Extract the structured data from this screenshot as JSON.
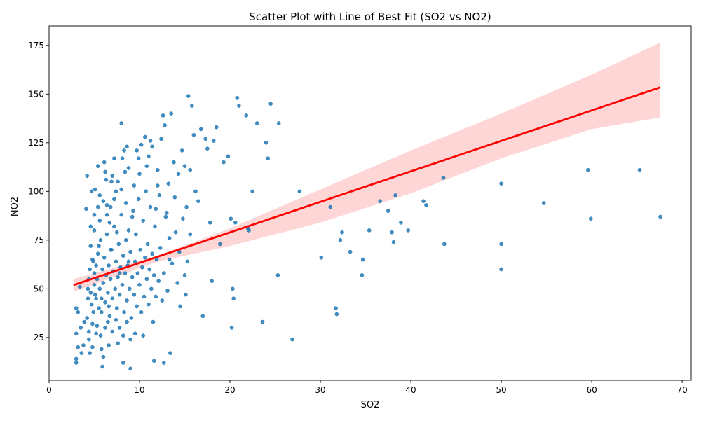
{
  "chart_data": {
    "type": "scatter",
    "title": "Scatter Plot with Line of Best Fit (SO2 vs NO2)",
    "xlabel": "SO2",
    "ylabel": "NO2",
    "xlim": [
      0,
      71
    ],
    "ylim": [
      3,
      185
    ],
    "xticks": [
      0,
      10,
      20,
      30,
      40,
      50,
      60,
      70
    ],
    "yticks": [
      25,
      50,
      75,
      100,
      125,
      150,
      175
    ],
    "grid": false,
    "legend": "none",
    "colors": {
      "points": "#1f77b4",
      "fit_line": "#ff0000",
      "band": "#ffc0c0"
    },
    "fit_line": {
      "x": [
        2.7,
        67.6
      ],
      "y": [
        51.9,
        153.5
      ]
    },
    "confidence_band": {
      "x": [
        2.7,
        12,
        20,
        30,
        40,
        50,
        60,
        67.6
      ],
      "upper": [
        55,
        67,
        81,
        101,
        121,
        140,
        160,
        176.5
      ],
      "lower": [
        48.5,
        64,
        72,
        84,
        99,
        117,
        132,
        138
      ]
    },
    "points": [
      [
        3,
        40
      ],
      [
        3,
        14
      ],
      [
        3,
        12
      ],
      [
        3,
        27
      ],
      [
        3.2,
        20
      ],
      [
        3.2,
        38
      ],
      [
        3.4,
        51
      ],
      [
        3.5,
        30
      ],
      [
        3.6,
        17
      ],
      [
        3.8,
        21
      ],
      [
        3.9,
        33
      ],
      [
        4.1,
        91
      ],
      [
        4.2,
        108
      ],
      [
        4.3,
        45
      ],
      [
        4.4,
        24
      ],
      [
        4.5,
        17
      ],
      [
        4.6,
        82
      ],
      [
        4.7,
        100
      ],
      [
        4.8,
        20
      ],
      [
        4.9,
        64
      ],
      [
        5,
        88
      ],
      [
        5.1,
        101
      ],
      [
        5.2,
        45
      ],
      [
        5.3,
        31
      ],
      [
        5.4,
        113
      ],
      [
        5.5,
        72
      ],
      [
        5.6,
        98
      ],
      [
        5.7,
        26
      ],
      [
        5.8,
        19
      ],
      [
        5.9,
        10
      ],
      [
        6,
        15
      ],
      [
        6.1,
        115
      ],
      [
        6.2,
        110
      ],
      [
        6.3,
        106
      ],
      [
        6.4,
        93
      ],
      [
        6.5,
        33
      ],
      [
        6.6,
        21
      ],
      [
        6.7,
        84
      ],
      [
        6.8,
        70
      ],
      [
        6.9,
        105
      ],
      [
        7,
        108
      ],
      [
        7.2,
        117
      ],
      [
        7.4,
        100
      ],
      [
        7.5,
        79
      ],
      [
        7.6,
        22
      ],
      [
        7.8,
        30
      ],
      [
        8,
        135
      ],
      [
        8.1,
        117
      ],
      [
        8.2,
        12
      ],
      [
        8.3,
        121
      ],
      [
        8.5,
        94
      ],
      [
        8.6,
        123
      ],
      [
        8.8,
        64
      ],
      [
        9,
        9
      ],
      [
        9.2,
        87
      ],
      [
        9.4,
        103
      ],
      [
        9.5,
        27
      ],
      [
        9.7,
        121
      ],
      [
        9.9,
        117
      ],
      [
        10,
        109
      ],
      [
        10.2,
        124
      ],
      [
        10.4,
        26
      ],
      [
        10.6,
        128
      ],
      [
        10.8,
        113
      ],
      [
        11,
        118
      ],
      [
        11.2,
        126
      ],
      [
        11.4,
        123
      ],
      [
        11.6,
        13
      ],
      [
        11.8,
        91
      ],
      [
        12,
        111
      ],
      [
        12.2,
        98
      ],
      [
        12.4,
        127
      ],
      [
        12.6,
        139
      ],
      [
        12.7,
        12
      ],
      [
        12.8,
        134
      ],
      [
        13,
        89
      ],
      [
        13.2,
        104
      ],
      [
        13.3,
        65
      ],
      [
        13.4,
        17
      ],
      [
        13.5,
        140
      ],
      [
        13.8,
        115
      ],
      [
        14,
        79
      ],
      [
        14.3,
        109
      ],
      [
        14.5,
        41
      ],
      [
        14.7,
        121
      ],
      [
        15,
        113
      ],
      [
        15.2,
        92
      ],
      [
        15.4,
        149
      ],
      [
        15.6,
        111
      ],
      [
        15.8,
        144
      ],
      [
        16,
        129
      ],
      [
        16.2,
        100
      ],
      [
        16.5,
        95
      ],
      [
        16.8,
        132
      ],
      [
        17,
        36
      ],
      [
        17.3,
        127
      ],
      [
        17.5,
        122
      ],
      [
        17.8,
        84
      ],
      [
        18,
        54
      ],
      [
        18.2,
        126
      ],
      [
        18.5,
        133
      ],
      [
        18.9,
        73
      ],
      [
        19.3,
        115
      ],
      [
        19.8,
        118
      ],
      [
        20.1,
        86
      ],
      [
        20.2,
        30
      ],
      [
        20.3,
        50
      ],
      [
        20.4,
        45
      ],
      [
        20.6,
        84
      ],
      [
        20.8,
        148
      ],
      [
        21,
        144
      ],
      [
        21.8,
        139
      ],
      [
        22,
        81
      ],
      [
        22.1,
        80
      ],
      [
        22.5,
        100
      ],
      [
        23,
        135
      ],
      [
        23.6,
        33
      ],
      [
        24,
        125
      ],
      [
        24.2,
        117
      ],
      [
        24.5,
        145
      ],
      [
        25.3,
        57
      ],
      [
        25.4,
        135
      ],
      [
        26.9,
        24
      ],
      [
        27.7,
        100
      ],
      [
        30.1,
        66
      ],
      [
        31.1,
        92
      ],
      [
        31.7,
        40
      ],
      [
        31.8,
        37
      ],
      [
        32.2,
        75
      ],
      [
        32.4,
        79
      ],
      [
        33.3,
        69
      ],
      [
        34.6,
        57
      ],
      [
        34.7,
        65
      ],
      [
        35.4,
        80
      ],
      [
        36.6,
        95
      ],
      [
        37.5,
        90
      ],
      [
        37.9,
        79
      ],
      [
        38.1,
        74
      ],
      [
        38.3,
        98
      ],
      [
        38.9,
        84
      ],
      [
        39.7,
        80
      ],
      [
        41.4,
        95
      ],
      [
        41.7,
        93
      ],
      [
        43.6,
        107
      ],
      [
        43.7,
        73
      ],
      [
        50,
        104
      ],
      [
        50,
        73
      ],
      [
        50,
        60
      ],
      [
        54.7,
        94
      ],
      [
        59.6,
        111
      ],
      [
        59.9,
        86
      ],
      [
        65.3,
        111
      ],
      [
        67.6,
        87
      ],
      [
        4.3,
        50
      ],
      [
        4.4,
        55
      ],
      [
        4.5,
        60
      ],
      [
        4.6,
        48
      ],
      [
        4.7,
        42
      ],
      [
        4.8,
        65
      ],
      [
        4.9,
        38
      ],
      [
        5,
        52
      ],
      [
        5,
        58
      ],
      [
        5.1,
        47
      ],
      [
        5.2,
        62
      ],
      [
        5.3,
        55
      ],
      [
        5.4,
        68
      ],
      [
        5.5,
        40
      ],
      [
        5.6,
        50
      ],
      [
        5.7,
        75
      ],
      [
        5.8,
        45
      ],
      [
        5.9,
        60
      ],
      [
        6,
        53
      ],
      [
        6.1,
        66
      ],
      [
        6.2,
        43
      ],
      [
        6.3,
        57
      ],
      [
        6.4,
        78
      ],
      [
        6.5,
        48
      ],
      [
        6.6,
        62
      ],
      [
        6.7,
        36
      ],
      [
        6.8,
        55
      ],
      [
        6.9,
        70
      ],
      [
        7,
        45
      ],
      [
        7.1,
        59
      ],
      [
        7.2,
        82
      ],
      [
        7.3,
        50
      ],
      [
        7.4,
        64
      ],
      [
        7.5,
        40
      ],
      [
        7.6,
        56
      ],
      [
        7.7,
        73
      ],
      [
        7.8,
        47
      ],
      [
        7.9,
        61
      ],
      [
        8,
        88
      ],
      [
        8.1,
        52
      ],
      [
        8.2,
        67
      ],
      [
        8.3,
        38
      ],
      [
        8.4,
        58
      ],
      [
        8.5,
        75
      ],
      [
        8.6,
        44
      ],
      [
        8.7,
        62
      ],
      [
        8.8,
        80
      ],
      [
        8.9,
        50
      ],
      [
        9,
        69
      ],
      [
        9.1,
        35
      ],
      [
        9.2,
        56
      ],
      [
        9.3,
        90
      ],
      [
        9.4,
        47
      ],
      [
        9.5,
        64
      ],
      [
        9.6,
        78
      ],
      [
        9.7,
        41
      ],
      [
        9.8,
        58
      ],
      [
        9.9,
        96
      ],
      [
        10,
        52
      ],
      [
        10.1,
        70
      ],
      [
        10.2,
        38
      ],
      [
        10.3,
        61
      ],
      [
        10.4,
        85
      ],
      [
        10.5,
        46
      ],
      [
        10.6,
        66
      ],
      [
        10.7,
        100
      ],
      [
        10.8,
        55
      ],
      [
        10.9,
        73
      ],
      [
        11,
        42
      ],
      [
        11.1,
        60
      ],
      [
        11.2,
        92
      ],
      [
        11.3,
        50
      ],
      [
        11.4,
        68
      ],
      [
        11.5,
        33
      ],
      [
        11.6,
        57
      ],
      [
        11.7,
        82
      ],
      [
        11.8,
        46
      ],
      [
        11.9,
        65
      ],
      [
        12,
        103
      ],
      [
        12.1,
        54
      ],
      [
        12.3,
        71
      ],
      [
        12.5,
        44
      ],
      [
        12.7,
        58
      ],
      [
        12.9,
        87
      ],
      [
        13.1,
        49
      ],
      [
        13.3,
        76
      ],
      [
        13.6,
        63
      ],
      [
        13.9,
        97
      ],
      [
        14.2,
        53
      ],
      [
        14.4,
        69
      ],
      [
        14.8,
        86
      ],
      [
        15,
        57
      ],
      [
        15.1,
        47
      ],
      [
        15.3,
        64
      ],
      [
        15.6,
        78
      ],
      [
        4.2,
        35
      ],
      [
        4.4,
        28
      ],
      [
        4.6,
        72
      ],
      [
        4.8,
        32
      ],
      [
        5,
        80
      ],
      [
        5.2,
        27
      ],
      [
        5.4,
        92
      ],
      [
        5.6,
        85
      ],
      [
        5.8,
        38
      ],
      [
        6,
        95
      ],
      [
        6.2,
        30
      ],
      [
        6.4,
        88
      ],
      [
        6.6,
        41
      ],
      [
        6.8,
        92
      ],
      [
        7,
        28
      ],
      [
        7.2,
        96
      ],
      [
        7.4,
        34
      ],
      [
        7.6,
        105
      ],
      [
        7.8,
        58
      ],
      [
        8,
        101
      ],
      [
        8.2,
        26
      ],
      [
        8.4,
        110
      ],
      [
        8.6,
        33
      ],
      [
        8.8,
        112
      ],
      [
        9,
        24
      ]
    ]
  }
}
